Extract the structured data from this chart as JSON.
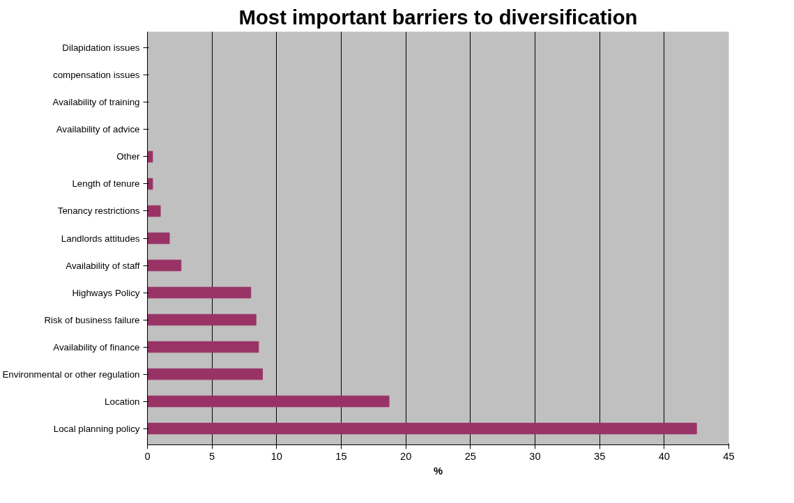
{
  "chart_data": {
    "type": "bar",
    "orientation": "horizontal",
    "title": "Most important barriers to diversification",
    "xlabel": "%",
    "categories": [
      "Dilapidation issues",
      "compensation issues",
      "Availability of training",
      "Availability of advice",
      "Other",
      "Length of tenure",
      "Tenancy restrictions",
      "Landlords attitudes",
      "Availability of staff",
      "Highways Policy",
      "Risk of business failure",
      "Availability of finance",
      "Environmental or other regulation",
      "Location",
      "Local planning policy"
    ],
    "values": [
      0,
      0,
      0,
      0,
      0.4,
      0.4,
      1.0,
      1.7,
      2.6,
      8.0,
      8.4,
      8.6,
      8.9,
      18.7,
      42.5
    ],
    "color": "#993366",
    "xlim": [
      0,
      45
    ],
    "xticks": [
      0,
      5,
      10,
      15,
      20,
      25,
      30,
      35,
      40,
      45
    ],
    "grid": "x"
  }
}
